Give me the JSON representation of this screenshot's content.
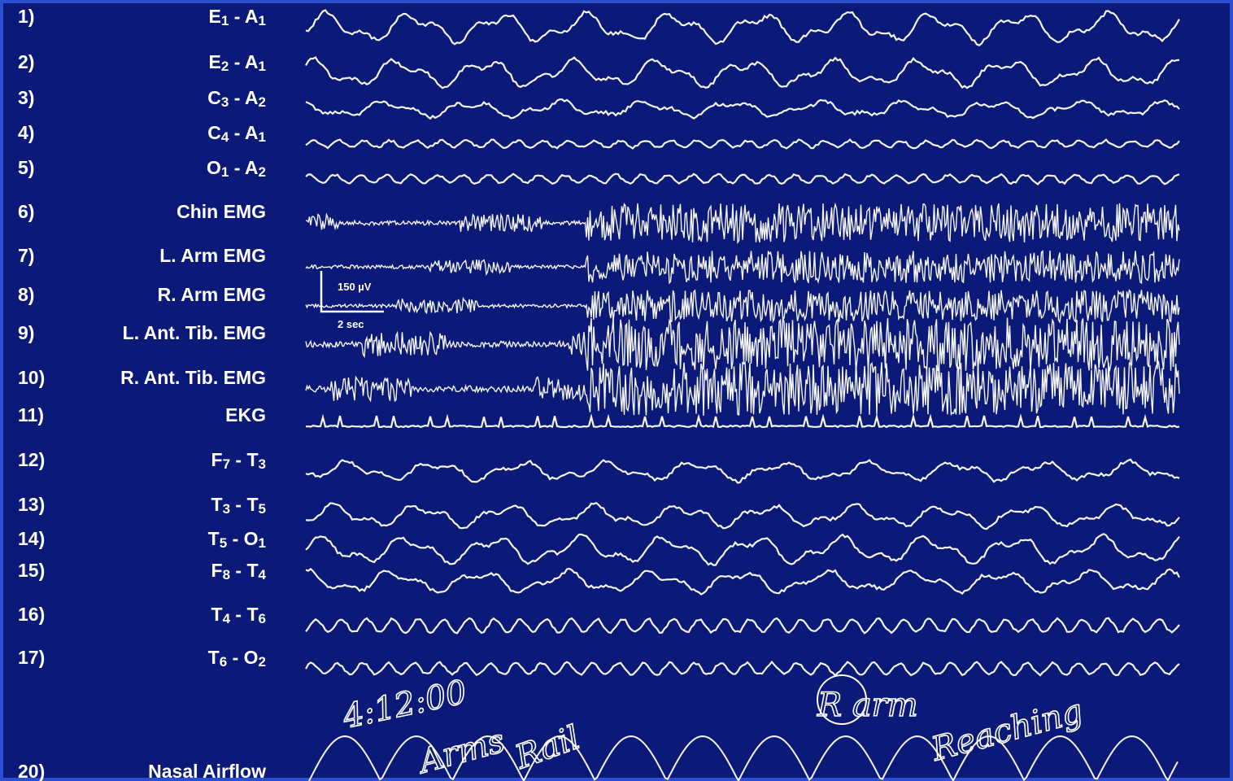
{
  "channels": [
    {
      "number": "1)",
      "label": [
        "E",
        "1",
        " - A",
        "1"
      ]
    },
    {
      "number": "2)",
      "label": [
        "E",
        "2",
        " - A",
        "1"
      ]
    },
    {
      "number": "3)",
      "label": [
        "C",
        "3",
        " - A",
        "2"
      ]
    },
    {
      "number": "4)",
      "label": [
        "C",
        "4",
        " - A",
        "1"
      ]
    },
    {
      "number": "5)",
      "label": [
        "O",
        "1",
        " - A",
        "2"
      ]
    },
    {
      "number": "6)",
      "label": [
        "Chin EMG"
      ]
    },
    {
      "number": "7)",
      "label": [
        "L. Arm EMG"
      ]
    },
    {
      "number": "8)",
      "label": [
        "R. Arm EMG"
      ]
    },
    {
      "number": "9)",
      "label": [
        "L. Ant. Tib. EMG"
      ]
    },
    {
      "number": "10)",
      "label": [
        "R. Ant. Tib. EMG"
      ]
    },
    {
      "number": "11)",
      "label": [
        "EKG"
      ]
    },
    {
      "number": "12)",
      "label": [
        "F",
        "7",
        " - T",
        "3"
      ]
    },
    {
      "number": "13)",
      "label": [
        "T",
        "3",
        " - T",
        "5"
      ]
    },
    {
      "number": "14)",
      "label": [
        "T",
        "5",
        " - O",
        "1"
      ]
    },
    {
      "number": "15)",
      "label": [
        "F",
        "8",
        " - T",
        "4"
      ]
    },
    {
      "number": "16)",
      "label": [
        "T",
        "4",
        " - T",
        "6"
      ]
    },
    {
      "number": "17)",
      "label": [
        "T",
        "6",
        " - O",
        "2"
      ]
    },
    {
      "number": "20)",
      "label": [
        "Nasal Airflow"
      ]
    }
  ],
  "scale_bar": {
    "amplitude": "150 µV",
    "time": "2 sec"
  },
  "handwriting": [
    "4:12:00",
    "Arms",
    "Rail",
    "R arm",
    "Reaching"
  ]
}
